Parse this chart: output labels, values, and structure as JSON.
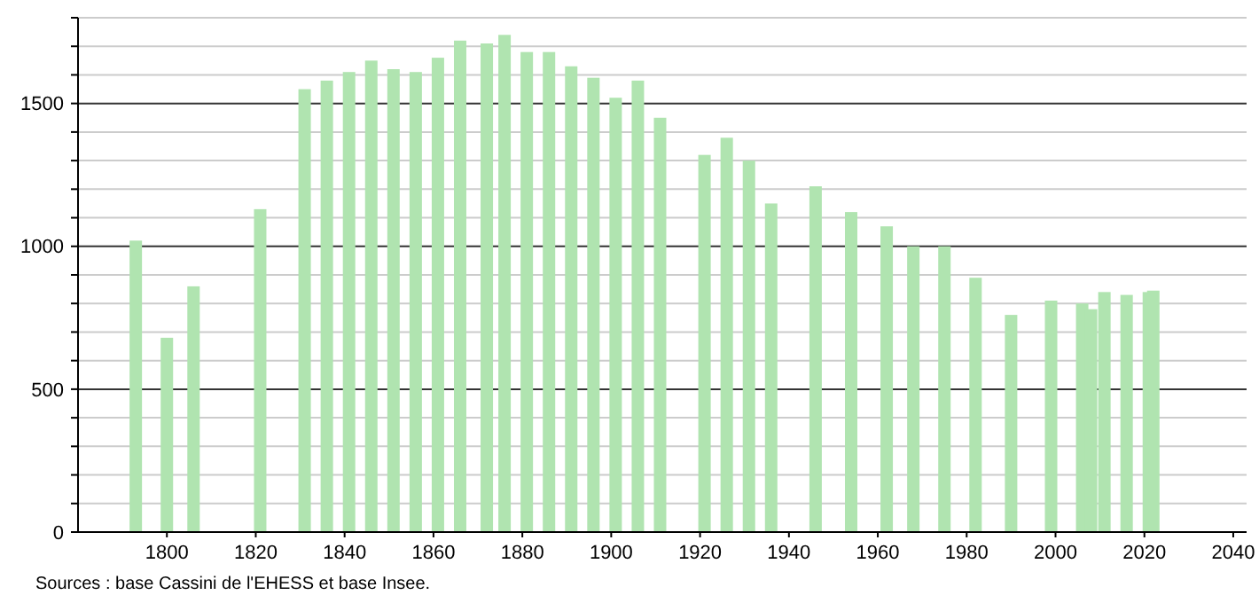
{
  "chart_data": {
    "type": "bar",
    "x": [
      1793,
      1800,
      1806,
      1821,
      1831,
      1836,
      1841,
      1846,
      1851,
      1856,
      1861,
      1866,
      1872,
      1876,
      1881,
      1886,
      1891,
      1896,
      1901,
      1906,
      1911,
      1921,
      1926,
      1931,
      1936,
      1946,
      1954,
      1962,
      1968,
      1975,
      1982,
      1990,
      1999,
      2006,
      2008,
      2011,
      2016,
      2021,
      2022
    ],
    "values": [
      1020,
      680,
      860,
      1130,
      1550,
      1580,
      1610,
      1650,
      1620,
      1610,
      1660,
      1720,
      1710,
      1740,
      1680,
      1680,
      1630,
      1590,
      1520,
      1580,
      1450,
      1320,
      1380,
      1300,
      1150,
      1210,
      1120,
      1070,
      1000,
      1000,
      890,
      760,
      810,
      800,
      780,
      840,
      830,
      840,
      845
    ],
    "color": "#b0e4b0",
    "xlim": [
      1780,
      2043
    ],
    "xticks": [
      1800,
      1820,
      1840,
      1860,
      1880,
      1900,
      1920,
      1940,
      1960,
      1980,
      2000,
      2020,
      2040
    ],
    "ylim": [
      0,
      1800
    ],
    "yticks": [
      0,
      {
        "value": 100,
        "label": null
      },
      {
        "value": 200,
        "label": null
      },
      {
        "value": 300,
        "label": null
      },
      {
        "value": 400,
        "label": null
      },
      500,
      {
        "value": 600,
        "label": null
      },
      {
        "value": 700,
        "label": null
      },
      {
        "value": 800,
        "label": null
      },
      {
        "value": 900,
        "label": null
      },
      1000,
      {
        "value": 1100,
        "label": null
      },
      {
        "value": 1200,
        "label": null
      },
      {
        "value": 1300,
        "label": null
      },
      {
        "value": 1400,
        "label": null
      },
      1500,
      {
        "value": 1600,
        "label": null
      },
      {
        "value": 1700,
        "label": null
      },
      {
        "value": 1800,
        "label": null
      }
    ],
    "grid": true,
    "annotations": [
      "Sources : base Cassini de l'EHESS et base Insee."
    ]
  }
}
